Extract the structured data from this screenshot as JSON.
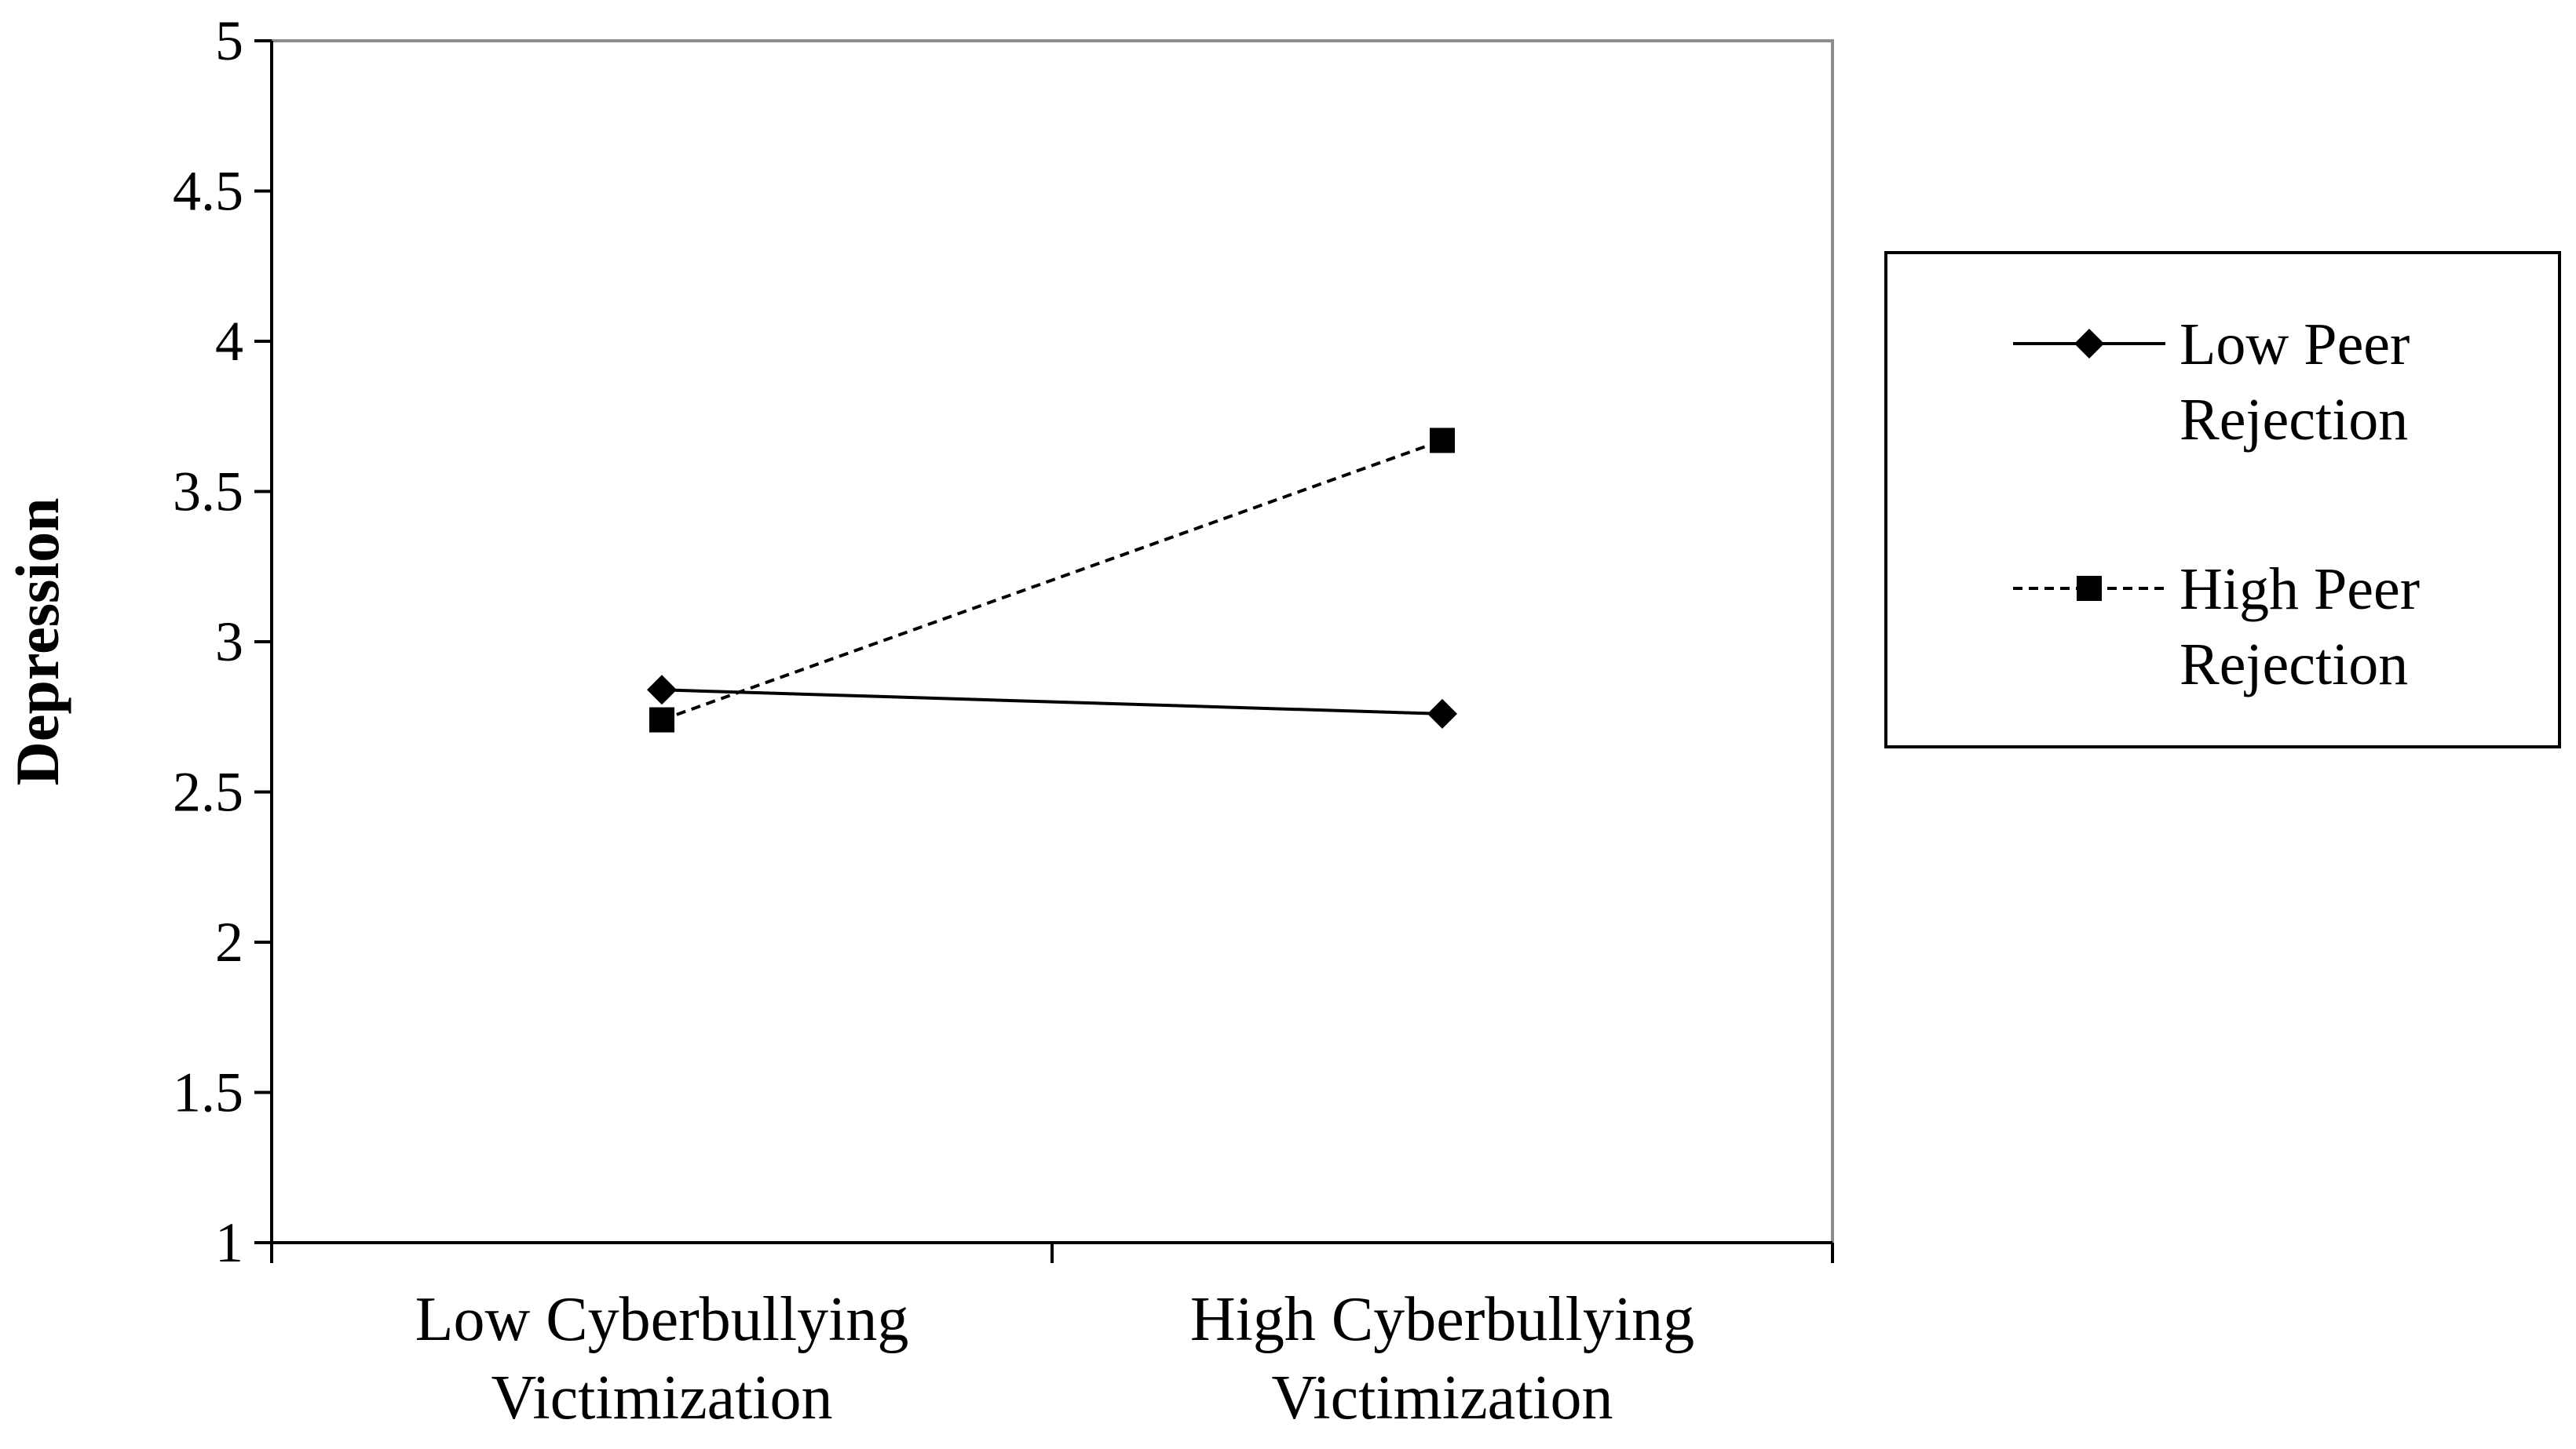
{
  "chart_data": {
    "type": "line",
    "title": "",
    "xlabel": "",
    "ylabel": "Depression",
    "ylim": [
      1,
      5
    ],
    "yticks": [
      "1",
      "1.5",
      "2",
      "2.5",
      "3",
      "3.5",
      "4",
      "4.5",
      "5"
    ],
    "categories": [
      [
        "Low Cyberbullying",
        "Victimization"
      ],
      [
        "High Cyberbullying",
        "Victimization"
      ]
    ],
    "series": [
      {
        "name": [
          "Low Peer",
          "Rejection"
        ],
        "values": [
          2.84,
          2.76
        ],
        "marker": "diamond",
        "dash": "solid",
        "color": "#000000"
      },
      {
        "name": [
          "High Peer",
          "Rejection"
        ],
        "values": [
          2.74,
          3.67
        ],
        "marker": "square",
        "dash": "dashed",
        "color": "#000000"
      }
    ],
    "grid": false,
    "legend_position": "right"
  }
}
